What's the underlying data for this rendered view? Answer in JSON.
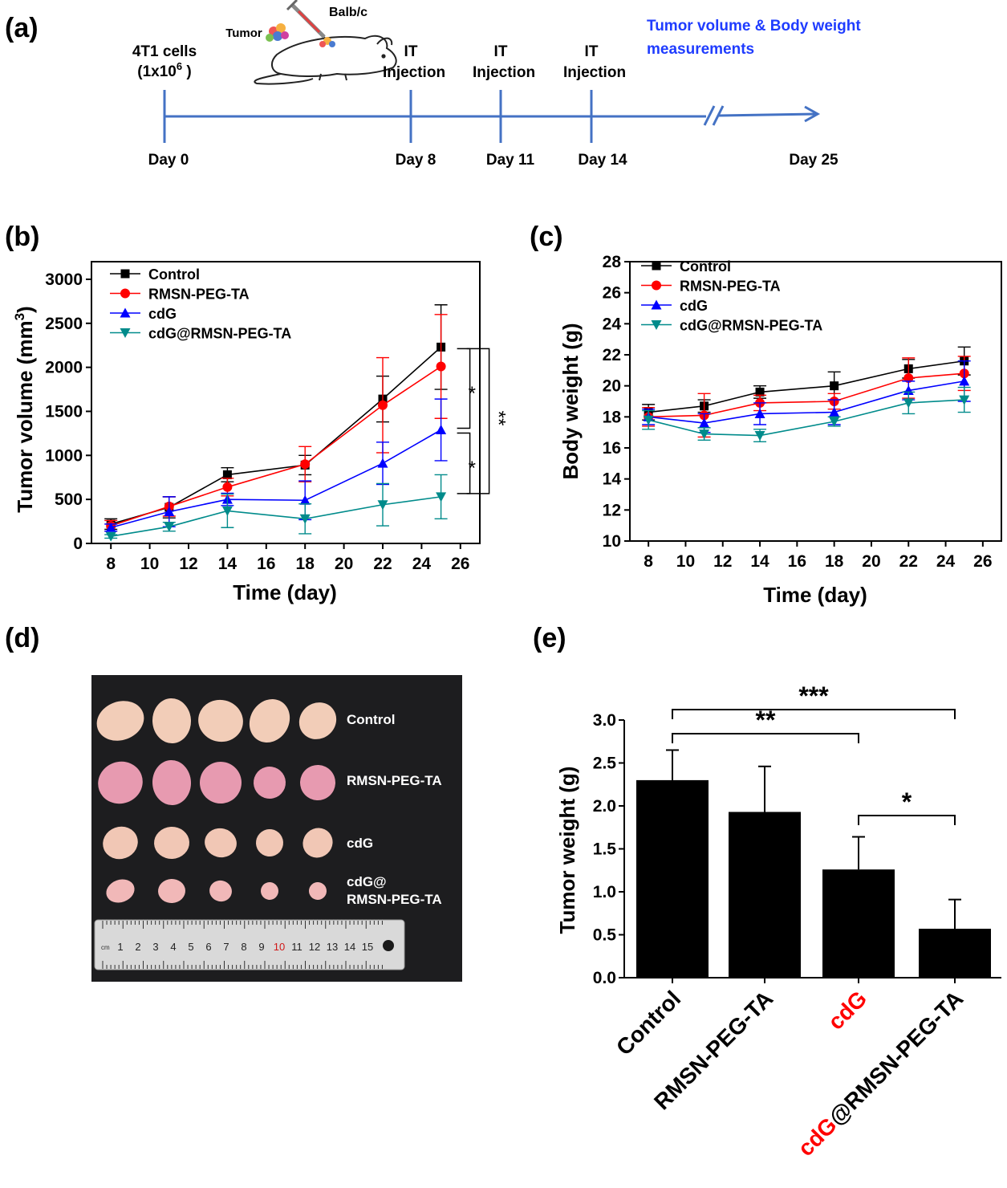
{
  "panel_labels": {
    "a": "(a)",
    "b": "(b)",
    "c": "(c)",
    "d": "(d)",
    "e": "(e)"
  },
  "timeline": {
    "cells_label": "4T1 cells",
    "cells_count_base": "(1x10",
    "cells_count_exp": "6",
    "cells_count_end": " )",
    "tumor_label": "Tumor",
    "mouse_label": "Balb/c",
    "injection_top": "IT",
    "injection_bottom": "Injection",
    "measure_line1": "Tumor volume & Body weight",
    "measure_line2": "measurements",
    "days": [
      "Day 0",
      "Day 8",
      "Day 11",
      "Day 14",
      "Day 25"
    ],
    "colors": {
      "axis": "#4472c4",
      "measure_text": "#1f3cff"
    }
  },
  "photo": {
    "rows": [
      "Control",
      "RMSN-PEG-TA",
      "cdG",
      "cdG@",
      "RMSN-PEG-TA"
    ],
    "ruler_numbers": [
      "1",
      "2",
      "3",
      "4",
      "5",
      "6",
      "7",
      "8",
      "9",
      "10",
      "11",
      "12",
      "13",
      "14",
      "15"
    ],
    "ruler_unit": "cm"
  },
  "series_colors": {
    "Control": "#000000",
    "RMSN-PEG-TA": "#ff0000",
    "cdG": "#0000ff",
    "cdG@RMSN-PEG-TA": "#008b8b"
  },
  "chart_data": [
    {
      "type": "line",
      "panel": "b",
      "xlabel": "Time (day)",
      "ylabel_base": "Tumor volume (mm",
      "ylabel_sup": "3",
      "ylabel_end": ")",
      "x": [
        8,
        11,
        14,
        18,
        22,
        25
      ],
      "xlim": [
        7,
        27
      ],
      "ylim": [
        0,
        3200
      ],
      "xticks": [
        8,
        10,
        12,
        14,
        16,
        18,
        20,
        22,
        24,
        26
      ],
      "yticks": [
        0,
        500,
        1000,
        1500,
        2000,
        2500,
        3000
      ],
      "legend": "top-left",
      "series": [
        {
          "name": "Control",
          "marker": "square",
          "values": [
            220,
            410,
            780,
            890,
            1640,
            2230
          ],
          "err": [
            60,
            120,
            80,
            110,
            260,
            480
          ]
        },
        {
          "name": "RMSN-PEG-TA",
          "marker": "circle",
          "values": [
            200,
            420,
            640,
            900,
            1570,
            2010
          ],
          "err": [
            60,
            110,
            100,
            200,
            540,
            590
          ]
        },
        {
          "name": "cdG",
          "marker": "triangle-up",
          "values": [
            180,
            360,
            500,
            490,
            910,
            1290
          ],
          "err": [
            40,
            170,
            70,
            220,
            240,
            350
          ]
        },
        {
          "name": "cdG@RMSN-PEG-TA",
          "marker": "triangle-down",
          "values": [
            80,
            190,
            370,
            280,
            440,
            530
          ],
          "err": [
            20,
            50,
            190,
            170,
            240,
            250
          ]
        }
      ],
      "annotations": [
        "*",
        "*",
        "**"
      ]
    },
    {
      "type": "line",
      "panel": "c",
      "xlabel": "Time (day)",
      "ylabel": "Body weight (g)",
      "x": [
        8,
        11,
        14,
        18,
        22,
        25
      ],
      "xlim": [
        7,
        27
      ],
      "ylim": [
        10,
        28
      ],
      "xticks": [
        8,
        10,
        12,
        14,
        16,
        18,
        20,
        22,
        24,
        26
      ],
      "yticks": [
        10,
        12,
        14,
        16,
        18,
        20,
        22,
        24,
        26,
        28
      ],
      "legend": "top-left",
      "series": [
        {
          "name": "Control",
          "marker": "square",
          "values": [
            18.3,
            18.7,
            19.6,
            20.0,
            21.1,
            21.6
          ],
          "err": [
            0.5,
            0.4,
            0.4,
            0.9,
            0.6,
            0.9
          ]
        },
        {
          "name": "RMSN-PEG-TA",
          "marker": "circle",
          "values": [
            18.0,
            18.1,
            18.9,
            19.0,
            20.5,
            20.8
          ],
          "err": [
            0.6,
            1.4,
            0.5,
            0.5,
            1.3,
            1.1
          ]
        },
        {
          "name": "cdG",
          "marker": "triangle-up",
          "values": [
            18.0,
            17.6,
            18.2,
            18.3,
            19.7,
            20.3
          ],
          "err": [
            0.5,
            0.6,
            0.7,
            0.8,
            0.6,
            1.3
          ]
        },
        {
          "name": "cdG@RMSN-PEG-TA",
          "marker": "triangle-down",
          "values": [
            17.8,
            16.9,
            16.8,
            17.7,
            18.9,
            19.1
          ],
          "err": [
            0.6,
            0.4,
            0.4,
            0.3,
            0.7,
            0.8
          ]
        }
      ]
    },
    {
      "type": "bar",
      "panel": "e",
      "ylabel": "Tumor weight (g)",
      "categories": [
        "Control",
        "RMSN-PEG-TA",
        "cdG",
        "cdG@RMSN-PEG-TA"
      ],
      "category_label_parts": [
        [
          {
            "text": "Control",
            "color": "#000000"
          }
        ],
        [
          {
            "text": "RMSN-PEG-TA",
            "color": "#000000"
          }
        ],
        [
          {
            "text": "cdG",
            "color": "#ff0000"
          }
        ],
        [
          {
            "text": "cdG",
            "color": "#ff0000"
          },
          {
            "text": "@RMSN-PEG-TA",
            "color": "#000000"
          }
        ]
      ],
      "values": [
        2.3,
        1.93,
        1.26,
        0.57
      ],
      "err": [
        0.35,
        0.53,
        0.38,
        0.34
      ],
      "ylim": [
        0,
        3.0
      ],
      "yticks": [
        "0.0",
        "0.5",
        "1.0",
        "1.5",
        "2.0",
        "2.5",
        "3.0"
      ],
      "bar_color": "#000000",
      "significance": [
        {
          "from": "Control",
          "to": "cdG@RMSN-PEG-TA",
          "label": "***"
        },
        {
          "from": "Control",
          "to": "cdG",
          "label": "**"
        },
        {
          "from": "cdG",
          "to": "cdG@RMSN-PEG-TA",
          "label": "*"
        }
      ]
    }
  ]
}
